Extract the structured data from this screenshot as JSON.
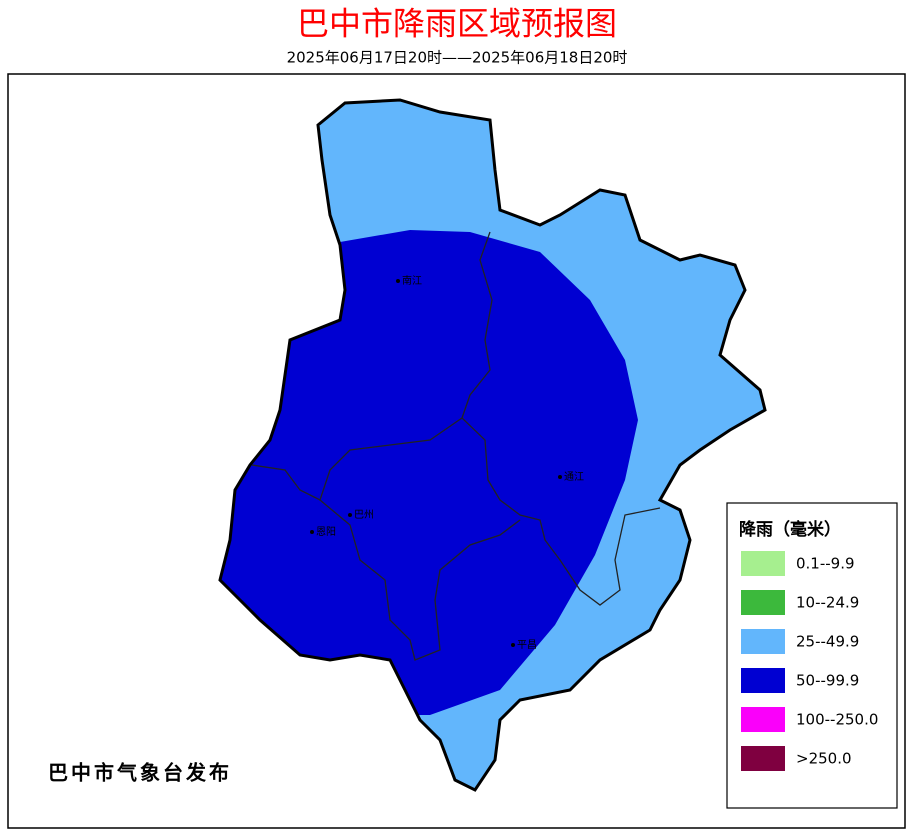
{
  "header": {
    "title": "巴中市降雨区域预报图",
    "subtitle": "2025年06月17日20时——2025年06月18日20时"
  },
  "legend": {
    "title": "降雨（毫米）",
    "items": [
      {
        "label": "0.1--9.9",
        "color": "#a6ef8f"
      },
      {
        "label": "10--24.9",
        "color": "#3cb93c"
      },
      {
        "label": "25--49.9",
        "color": "#62b6fc"
      },
      {
        "label": "50--99.9",
        "color": "#0000d2"
      },
      {
        "label": "100--250.0",
        "color": "#fa00fa"
      },
      {
        "label": ">250.0",
        "color": "#7f0040"
      }
    ]
  },
  "cities": [
    {
      "label": "南江"
    },
    {
      "label": "通江"
    },
    {
      "label": "巴州"
    },
    {
      "label": "恩阳"
    },
    {
      "label": "平昌"
    }
  ],
  "footer": {
    "publisher": "巴中市气象台发布"
  }
}
